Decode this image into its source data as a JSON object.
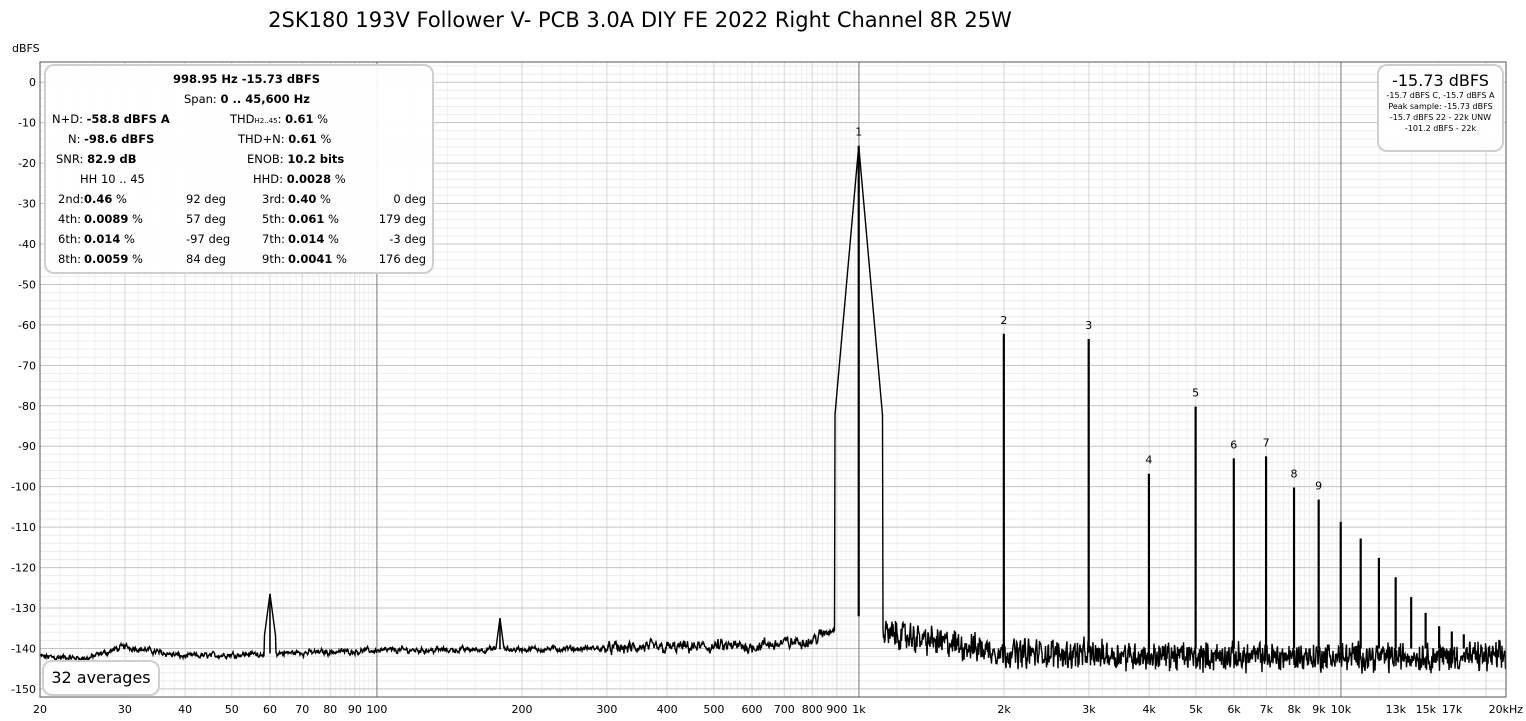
{
  "title": "2SK180 193V Follower V- PCB 3.0A DIY FE 2022 Right Channel 8R 25W",
  "chart_data": {
    "type": "line",
    "title": "2SK180 193V Follower V- PCB 3.0A DIY FE 2022 Right Channel 8R 25W",
    "xlabel": "",
    "ylabel": "dBFS",
    "x_scale": "log",
    "xlim": [
      20,
      22000
    ],
    "ylim": [
      -152,
      5
    ],
    "y_ticks": [
      0,
      -10,
      -20,
      -30,
      -40,
      -50,
      -60,
      -70,
      -80,
      -90,
      -100,
      -110,
      -120,
      -130,
      -140,
      -150
    ],
    "x_ticks": [
      {
        "v": 20,
        "label": "20"
      },
      {
        "v": 30,
        "label": "30"
      },
      {
        "v": 40,
        "label": "40"
      },
      {
        "v": 50,
        "label": "50"
      },
      {
        "v": 60,
        "label": "60"
      },
      {
        "v": 70,
        "label": "70"
      },
      {
        "v": 80,
        "label": "80"
      },
      {
        "v": 90,
        "label": "90"
      },
      {
        "v": 100,
        "label": "100"
      },
      {
        "v": 200,
        "label": "200"
      },
      {
        "v": 300,
        "label": "300"
      },
      {
        "v": 400,
        "label": "400"
      },
      {
        "v": 500,
        "label": "500"
      },
      {
        "v": 600,
        "label": "600"
      },
      {
        "v": 700,
        "label": "700"
      },
      {
        "v": 800,
        "label": "800"
      },
      {
        "v": 900,
        "label": "900"
      },
      {
        "v": 1000,
        "label": "1k"
      },
      {
        "v": 2000,
        "label": "2k"
      },
      {
        "v": 3000,
        "label": "3k"
      },
      {
        "v": 4000,
        "label": "4k"
      },
      {
        "v": 5000,
        "label": "5k"
      },
      {
        "v": 6000,
        "label": "6k"
      },
      {
        "v": 7000,
        "label": "7k"
      },
      {
        "v": 8000,
        "label": "8k"
      },
      {
        "v": 9000,
        "label": "9k"
      },
      {
        "v": 10000,
        "label": "10k"
      },
      {
        "v": 13000,
        "label": "13k"
      },
      {
        "v": 15000,
        "label": "15k"
      },
      {
        "v": 17000,
        "label": "17k"
      },
      {
        "v": 20000,
        "label": "20kHz"
      }
    ],
    "harmonics": [
      {
        "n": "1",
        "freq": 999,
        "db": -15.7
      },
      {
        "n": "2",
        "freq": 1998,
        "db": -62.2
      },
      {
        "n": "3",
        "freq": 2997,
        "db": -63.5
      },
      {
        "n": "4",
        "freq": 3996,
        "db": -96.8
      },
      {
        "n": "5",
        "freq": 4995,
        "db": -80.2
      },
      {
        "n": "6",
        "freq": 5994,
        "db": -93.0
      },
      {
        "n": "7",
        "freq": 6993,
        "db": -92.5
      },
      {
        "n": "8",
        "freq": 7992,
        "db": -100.2
      },
      {
        "n": "9",
        "freq": 8991,
        "db": -103.2
      },
      {
        "n": "",
        "freq": 9990,
        "db": -108.7
      },
      {
        "n": "",
        "freq": 10989,
        "db": -112.8
      },
      {
        "n": "",
        "freq": 11988,
        "db": -117.6
      },
      {
        "n": "",
        "freq": 12987,
        "db": -122.4
      },
      {
        "n": "",
        "freq": 13986,
        "db": -127.3
      },
      {
        "n": "",
        "freq": 14985,
        "db": -131.2
      },
      {
        "n": "",
        "freq": 15984,
        "db": -134.5
      },
      {
        "n": "",
        "freq": 16983,
        "db": -135.8
      },
      {
        "n": "",
        "freq": 17982,
        "db": -136.5
      }
    ],
    "spurs": [
      {
        "freq": 60,
        "db": -126.5
      },
      {
        "freq": 180,
        "db": -132.5
      }
    ],
    "noise_floor": [
      {
        "freq": 20,
        "db": -142
      },
      {
        "freq": 25,
        "db": -142.5
      },
      {
        "freq": 30,
        "db": -139.5
      },
      {
        "freq": 40,
        "db": -142
      },
      {
        "freq": 50,
        "db": -141.5
      },
      {
        "freq": 100,
        "db": -140.5
      },
      {
        "freq": 300,
        "db": -140
      },
      {
        "freq": 600,
        "db": -139.5
      },
      {
        "freq": 800,
        "db": -138
      },
      {
        "freq": 950,
        "db": -133
      },
      {
        "freq": 1100,
        "db": -136
      },
      {
        "freq": 2000,
        "db": -141
      },
      {
        "freq": 5000,
        "db": -142
      },
      {
        "freq": 10000,
        "db": -142
      },
      {
        "freq": 22000,
        "db": -142
      }
    ],
    "grid": true,
    "series_color": "#000000"
  },
  "unit_label": "dBFS",
  "stats": {
    "freq_level": "998.95 Hz  -15.73 dBFS",
    "span_label": "Span:",
    "span_value": "0 .. 45,600 Hz",
    "nd_label": "N+D:",
    "nd_value": "-58.8 dBFS A",
    "thd_label": "THD",
    "thd_sub": "H2..45",
    "thd_label_end": ":",
    "thd_value": "0.61",
    "thd_unit": "%",
    "n_label": "N:",
    "n_value": "-98.6 dBFS",
    "thdn_label": "THD+N:",
    "thdn_value": "0.61",
    "thdn_unit": "%",
    "snr_label": "SNR:",
    "snr_value": "82.9 dB",
    "enob_label": "ENOB:",
    "enob_value": "10.2 bits",
    "hh_label": "HH 10 .. 45",
    "hhd_label": "HHD:",
    "hhd_value": "0.0028",
    "hhd_unit": "%",
    "rows": [
      {
        "l1": "2nd:",
        "v1": "0.46",
        "u1": "%",
        "p1": "92 deg",
        "l2": "3rd:",
        "v2": "0.40",
        "u2": "%",
        "p2": "0 deg"
      },
      {
        "l1": "4th:",
        "v1": "0.0089",
        "u1": "%",
        "p1": "57 deg",
        "l2": "5th:",
        "v2": "0.061",
        "u2": "%",
        "p2": "179 deg"
      },
      {
        "l1": "6th:",
        "v1": "0.014",
        "u1": "%",
        "p1": "-97 deg",
        "l2": "7th:",
        "v2": "0.014",
        "u2": "%",
        "p2": "-3 deg"
      },
      {
        "l1": "8th:",
        "v1": "0.0059",
        "u1": "%",
        "p1": "84 deg",
        "l2": "9th:",
        "v2": "0.0041",
        "u2": "%",
        "p2": "176 deg"
      }
    ]
  },
  "peak": {
    "big": "-15.73 dBFS",
    "l1": "-15.7 dBFS C, -15.7 dBFS A",
    "l2": "Peak sample: -15.73 dBFS",
    "l3": "-15.7 dBFS 22 - 22k UNW",
    "l4": "-101.2 dBFS - 22k"
  },
  "averages": "32 averages"
}
